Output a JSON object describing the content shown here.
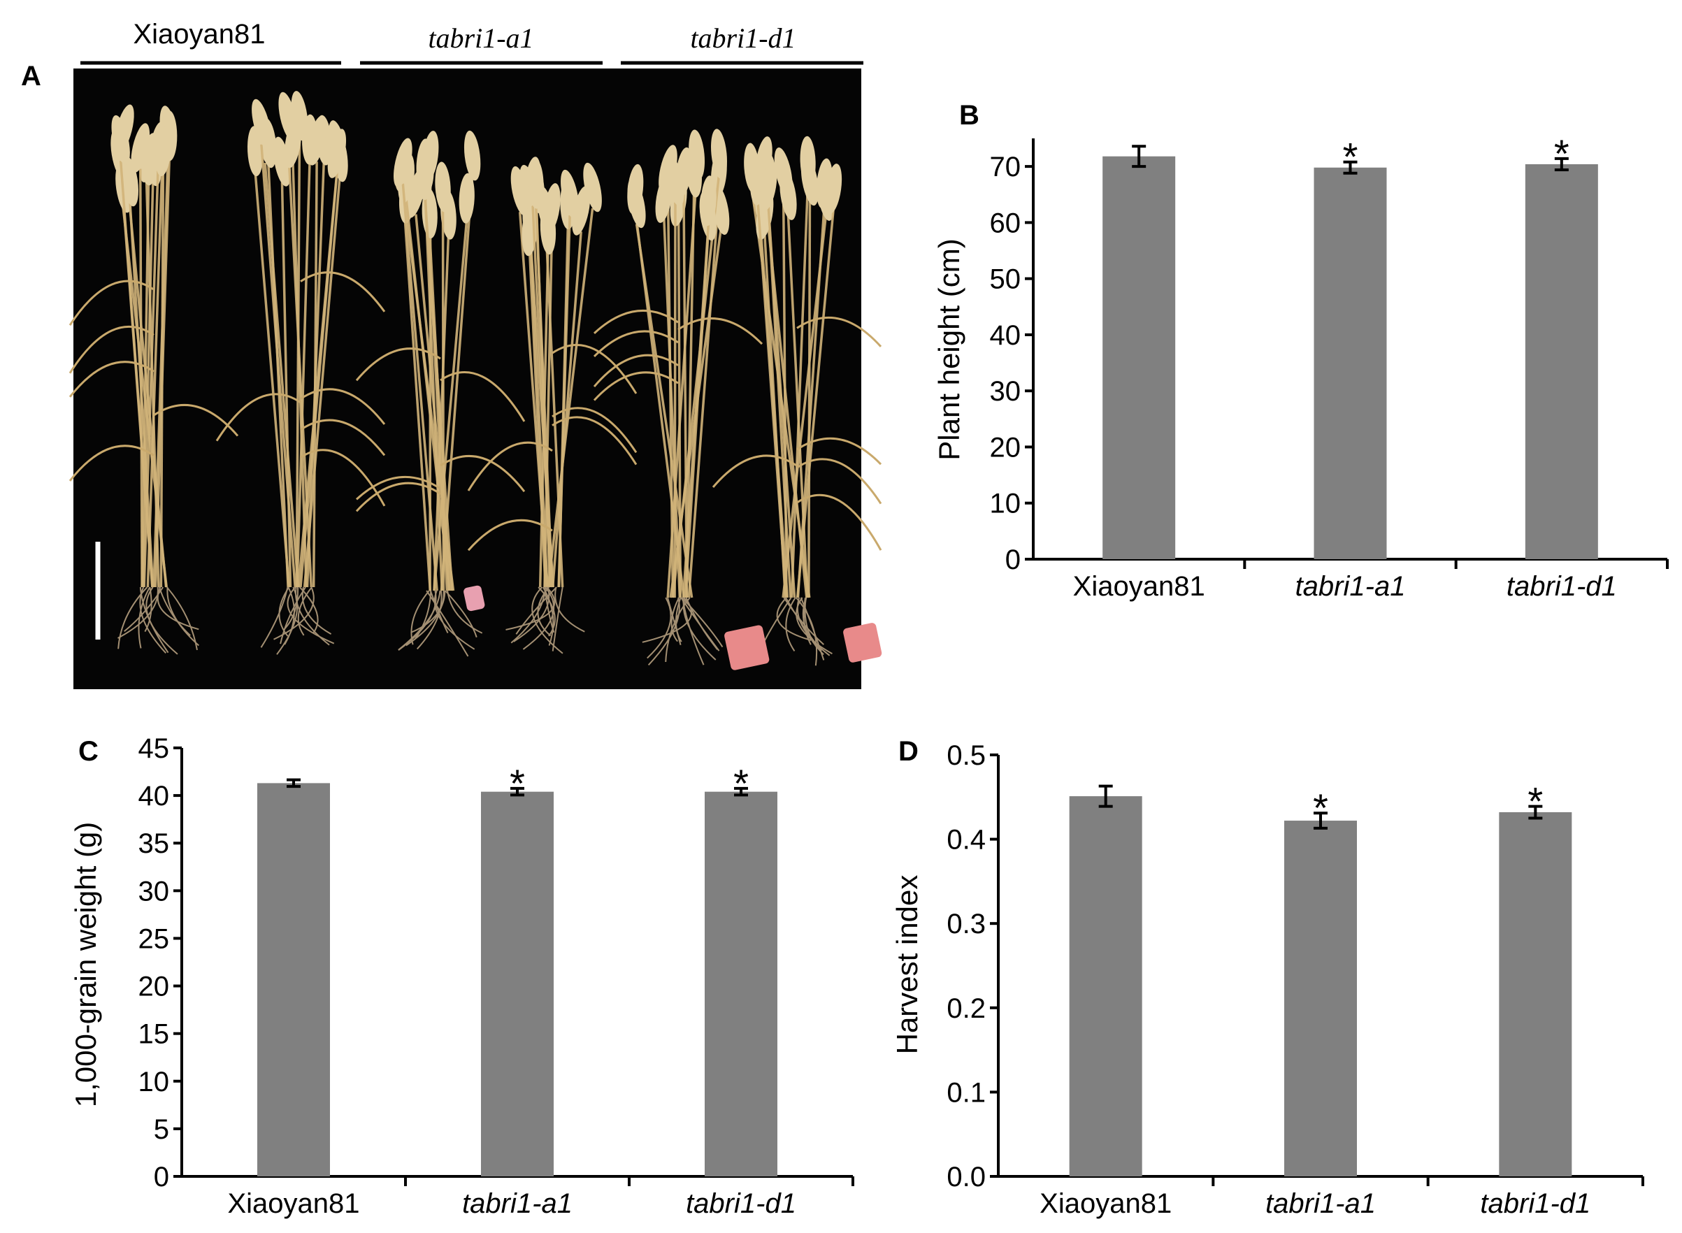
{
  "panels": {
    "A": {
      "letter": "A",
      "genotype_labels": [
        "Xiaoyan81",
        "tabri1-a1",
        "tabri1-d1"
      ]
    },
    "B": {
      "letter": "B"
    },
    "C": {
      "letter": "C"
    },
    "D": {
      "letter": "D"
    }
  },
  "colors": {
    "bar": "#808080",
    "axis": "#000000",
    "photo_bg": "#050505",
    "stem": "#d2b47a",
    "tag": "#e88a8a"
  },
  "chart_data": [
    {
      "id": "B",
      "type": "bar",
      "categories": [
        "Xiaoyan81",
        "tabri1-a1",
        "tabri1-d1"
      ],
      "italic_categories": [
        false,
        true,
        true
      ],
      "values": [
        71.8,
        69.8,
        70.4
      ],
      "errors": [
        1.8,
        1.0,
        1.0
      ],
      "significant": [
        false,
        true,
        true
      ],
      "annotation": "*",
      "ylabel": "Plant height (cm)",
      "xlabel": "",
      "ylim": [
        0,
        75
      ],
      "yticks": [
        0,
        10,
        20,
        30,
        40,
        50,
        60,
        70
      ],
      "tick_labels": [
        "0",
        "10",
        "20",
        "30",
        "40",
        "50",
        "60",
        "70"
      ],
      "grid": false
    },
    {
      "id": "C",
      "type": "bar",
      "categories": [
        "Xiaoyan81",
        "tabri1-a1",
        "tabri1-d1"
      ],
      "italic_categories": [
        false,
        true,
        true
      ],
      "values": [
        41.3,
        40.4,
        40.4
      ],
      "errors": [
        0.35,
        0.35,
        0.35
      ],
      "significant": [
        false,
        true,
        true
      ],
      "annotation": "*",
      "ylabel": "1,000-grain weight (g)",
      "xlabel": "",
      "ylim": [
        0,
        45
      ],
      "yticks": [
        0,
        5,
        10,
        15,
        20,
        25,
        30,
        35,
        40,
        45
      ],
      "tick_labels": [
        "0",
        "5",
        "10",
        "15",
        "20",
        "25",
        "30",
        "35",
        "40",
        "45"
      ],
      "grid": false
    },
    {
      "id": "D",
      "type": "bar",
      "categories": [
        "Xiaoyan81",
        "tabri1-a1",
        "tabri1-d1"
      ],
      "italic_categories": [
        false,
        true,
        true
      ],
      "values": [
        0.451,
        0.422,
        0.432
      ],
      "errors": [
        0.012,
        0.009,
        0.007
      ],
      "significant": [
        false,
        true,
        true
      ],
      "annotation": "*",
      "ylabel": "Harvest index",
      "xlabel": "",
      "ylim": [
        0,
        0.5
      ],
      "yticks": [
        0,
        0.1,
        0.2,
        0.3,
        0.4,
        0.5
      ],
      "tick_labels": [
        "0.0",
        "0.1",
        "0.2",
        "0.3",
        "0.4",
        "0.5"
      ],
      "grid": false
    }
  ]
}
